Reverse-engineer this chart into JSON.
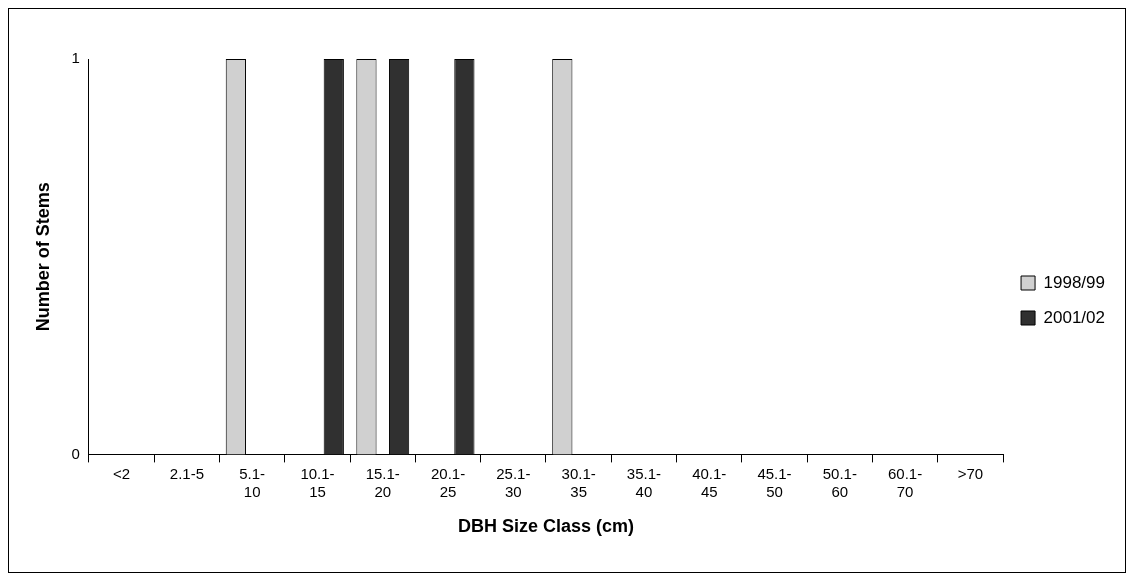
{
  "chart_data": {
    "type": "bar",
    "xlabel": "DBH Size Class (cm)",
    "ylabel": "Number of Stems",
    "categories": [
      "<2",
      "2.1-5",
      "5.1-10",
      "10.1-15",
      "15.1-20",
      "20.1-25",
      "25.1-30",
      "30.1-35",
      "35.1-40",
      "40.1-45",
      "45.1-50",
      "50.1-60",
      "60.1-70",
      ">70"
    ],
    "series": [
      {
        "name": "1998/99",
        "color": "#d0d0d0",
        "values": [
          0,
          0,
          1,
          0,
          1,
          0,
          0,
          1,
          0,
          0,
          0,
          0,
          0,
          0
        ]
      },
      {
        "name": "2001/02",
        "color": "#303030",
        "values": [
          0,
          0,
          0,
          1,
          1,
          1,
          0,
          0,
          0,
          0,
          0,
          0,
          0,
          0
        ]
      }
    ],
    "ylim": [
      0,
      1
    ],
    "yticks": [
      0,
      1
    ],
    "legend": "right"
  }
}
